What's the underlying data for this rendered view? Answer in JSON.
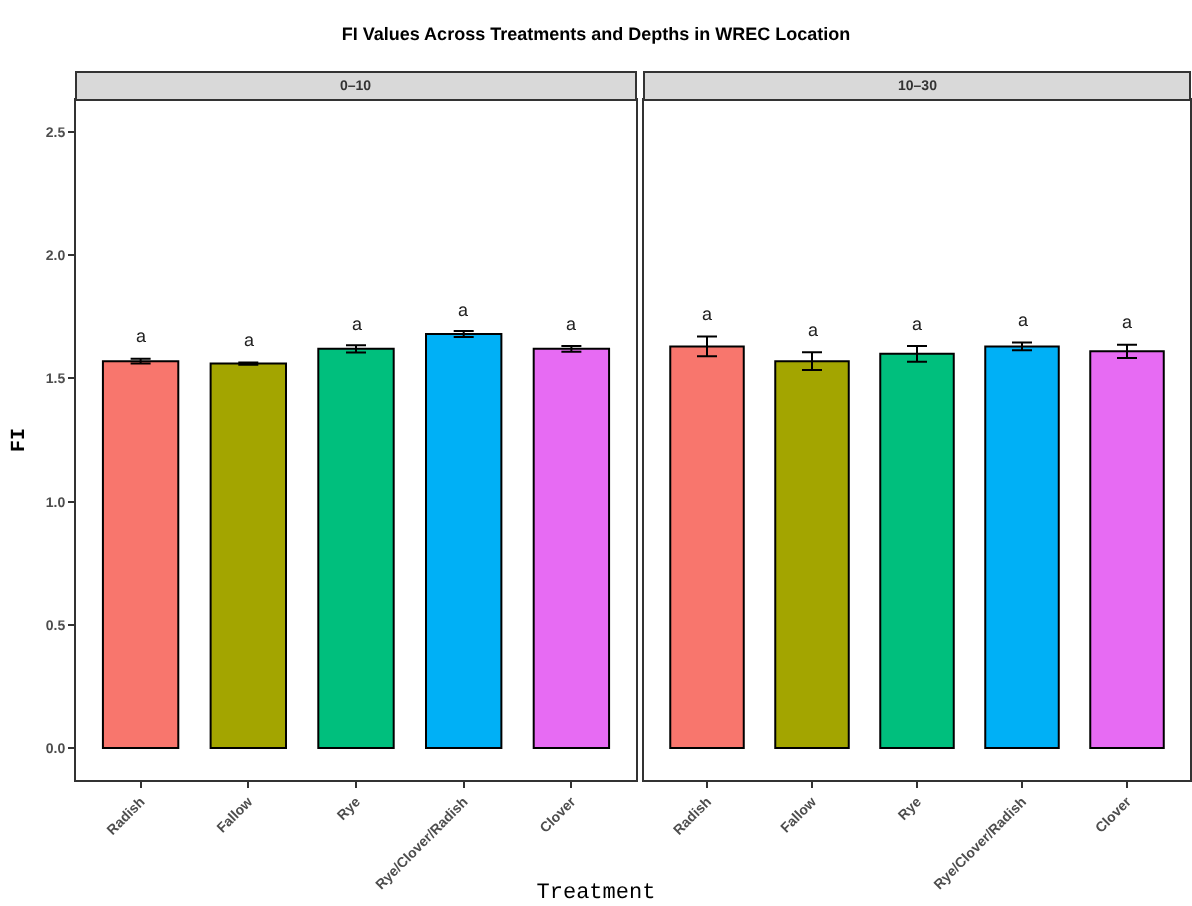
{
  "chart_data": [
    {
      "type": "bar",
      "title": "FI Values Across Treatments and Depths in WREC Location",
      "subtitle": "0–10",
      "xlabel": "Treatment",
      "ylabel": "FI",
      "categories": [
        "Radish",
        "Fallow",
        "Rye",
        "Rye/Clover/Radish",
        "Clover"
      ],
      "values": [
        1.57,
        1.56,
        1.62,
        1.68,
        1.62
      ],
      "colors": [
        "#f8766d",
        "#a3a500",
        "#00bf7d",
        "#00b0f6",
        "#e76bf3"
      ],
      "errors": [
        0.01,
        0.005,
        0.015,
        0.012,
        0.012
      ],
      "ylim": [
        -0.13,
        2.63
      ],
      "yticks": [
        {
          "value": 0,
          "label": "0.0"
        },
        {
          "value": 0.5,
          "label": "0.5"
        },
        {
          "value": 1,
          "label": "1.0"
        },
        {
          "value": 1.5,
          "label": "1.5"
        },
        {
          "value": 2,
          "label": "2.0"
        },
        {
          "value": 2.5,
          "label": "2.5"
        }
      ],
      "annotations": [
        "a",
        "a",
        "a",
        "a",
        "a"
      ]
    },
    {
      "type": "bar",
      "subtitle": "10–30",
      "categories": [
        "Radish",
        "Fallow",
        "Rye",
        "Rye/Clover/Radish",
        "Clover"
      ],
      "values": [
        1.63,
        1.57,
        1.6,
        1.63,
        1.61
      ],
      "colors": [
        "#f8766d",
        "#a3a500",
        "#00bf7d",
        "#00b0f6",
        "#e76bf3"
      ],
      "errors": [
        0.04,
        0.036,
        0.032,
        0.016,
        0.027
      ],
      "ylim": [
        -0.13,
        2.63
      ],
      "tick_labels": "x",
      "annotations": [
        "a",
        "a",
        "a",
        "a",
        "a"
      ]
    }
  ]
}
